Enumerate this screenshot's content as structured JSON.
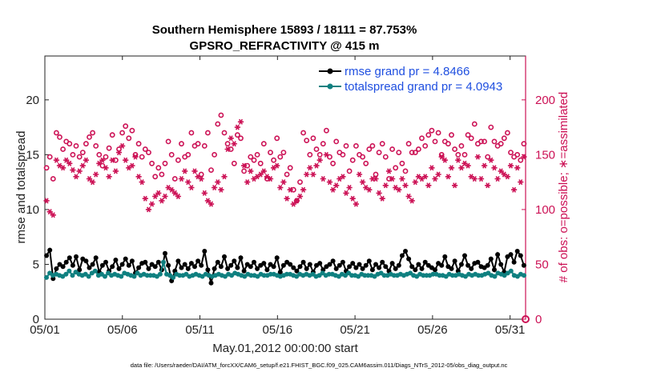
{
  "chart_data": {
    "type": "line",
    "title": "Southern Hemisphere 15893 / 18111 = 87.753%",
    "subtitle": "GPSRO_REFRACTIVITY @ 415 m",
    "xlabel": "May.01,2012 00:00:00 start",
    "ylabel": "rmse and totalspread",
    "ylabel_right": "# of obs: o=possible; ∗=assimilated",
    "footer": "data file: /Users/raeder/DAI/ATM_forcXX/CAM6_setup/f.e21.FHIST_BGC.f09_025.CAM6assim.011/Diags_NTrS_2012-05/obs_diag_output.nc",
    "xlim": [
      0,
      31
    ],
    "ylim": [
      0,
      24
    ],
    "ylim_right": [
      0,
      240
    ],
    "x_ticks": [
      0,
      5,
      10,
      15,
      20,
      25,
      30
    ],
    "x_tick_labels": [
      "05/01",
      "05/06",
      "05/11",
      "05/16",
      "05/21",
      "05/26",
      "05/31"
    ],
    "y_ticks": [
      0,
      5,
      10,
      15,
      20
    ],
    "y_tick_labels": [
      "0",
      "5",
      "10",
      "15",
      "20"
    ],
    "y_ticks_right": [
      0,
      50,
      100,
      150,
      200
    ],
    "y_tick_labels_right": [
      "0",
      "50",
      "100",
      "150",
      "200"
    ],
    "legend": [
      "rmse grand pr = 4.8466",
      "totalspread grand pr = 4.0943"
    ],
    "legend_location": "top-right",
    "colors": {
      "rmse": "#000000",
      "spread": "#0f8080",
      "obs": "#cc1155",
      "legend_text": "#1f4fe0"
    },
    "series": [
      {
        "name": "rmse",
        "axis": "left",
        "values": [
          5.8,
          6.3,
          3.7,
          4.6,
          5.0,
          4.8,
          5.2,
          5.6,
          4.9,
          5.7,
          4.5,
          5.5,
          5.3,
          4.7,
          5.0,
          5.6,
          4.3,
          4.9,
          5.2,
          4.4,
          4.8,
          5.4,
          4.6,
          5.0,
          5.5,
          4.9,
          5.3,
          4.2,
          4.7,
          5.1,
          5.2,
          4.6,
          5.0,
          4.8,
          5.2,
          4.5,
          6.0,
          4.9,
          3.5,
          4.4,
          5.3,
          4.7,
          5.0,
          4.6,
          5.1,
          4.8,
          5.3,
          4.9,
          6.2,
          4.5,
          3.3,
          4.6,
          5.2,
          4.8,
          5.7,
          4.6,
          4.9,
          5.3,
          4.7,
          5.6,
          4.4,
          5.0,
          4.8,
          5.2,
          4.6,
          4.9,
          5.1,
          4.5,
          5.0,
          4.8,
          5.6,
          4.3,
          4.9,
          5.2,
          5.0,
          4.7,
          4.4,
          4.8,
          5.2,
          4.6,
          5.0,
          4.3,
          4.9,
          5.1,
          4.5,
          4.8,
          5.0,
          5.3,
          4.6,
          4.9,
          5.2,
          4.4,
          4.8,
          5.1,
          4.7,
          5.0,
          4.6,
          4.9,
          5.3,
          4.5,
          5.0,
          4.7,
          5.2,
          4.8,
          4.4,
          5.1,
          4.6,
          4.9,
          5.8,
          6.2,
          5.5,
          4.8,
          4.5,
          5.0,
          4.6,
          5.2,
          4.9,
          4.7,
          4.5,
          5.1,
          4.9,
          5.7,
          4.8,
          4.6,
          5.3,
          4.4,
          5.0,
          5.8,
          4.9,
          4.6,
          5.1,
          5.2,
          4.8,
          4.7,
          4.9,
          5.5,
          4.5,
          5.9,
          5.0,
          4.3,
          5.7,
          5.9,
          5.2,
          6.2,
          5.8,
          4.9
        ]
      },
      {
        "name": "totalspread",
        "axis": "left",
        "values": [
          3.8,
          4.2,
          4.0,
          4.1,
          4.0,
          3.9,
          4.1,
          4.4,
          4.0,
          4.3,
          4.1,
          4.0,
          4.1,
          3.9,
          4.2,
          4.4,
          4.0,
          4.1,
          3.9,
          4.2,
          4.0,
          4.1,
          4.0,
          3.9,
          4.2,
          4.1,
          4.0,
          3.9,
          4.2,
          4.0,
          4.1,
          4.0,
          4.0,
          4.0,
          3.9,
          4.1,
          5.2,
          4.1,
          4.0,
          3.8,
          4.1,
          4.0,
          4.0,
          4.1,
          3.9,
          4.0,
          4.1,
          4.0,
          3.9,
          4.1,
          4.0,
          3.9,
          4.0,
          4.1,
          4.0,
          3.9,
          4.1,
          4.0,
          4.2,
          4.1,
          4.0,
          3.9,
          4.1,
          4.0,
          4.0,
          3.9,
          4.1,
          4.0,
          4.0,
          4.1,
          4.1,
          4.0,
          3.9,
          4.0,
          4.1,
          4.1,
          4.0,
          3.9,
          4.1,
          4.0,
          4.1,
          4.0,
          4.1,
          3.9,
          4.0,
          4.2,
          4.0,
          4.1,
          4.1,
          4.0,
          3.9,
          4.1,
          4.0,
          4.2,
          4.0,
          4.0,
          3.9,
          4.1,
          4.0,
          4.0,
          4.0,
          3.9,
          4.1,
          4.2,
          4.0,
          4.0,
          4.1,
          4.0,
          4.0,
          4.1,
          4.0,
          4.1,
          4.2,
          4.0,
          3.9,
          4.1,
          4.0,
          4.0,
          4.0,
          4.1,
          4.1,
          4.0,
          4.0,
          3.9,
          4.1,
          4.0,
          4.0,
          4.1,
          4.0,
          3.9,
          4.1,
          4.0,
          4.1,
          4.0,
          4.0,
          4.1,
          4.2,
          4.0,
          3.9,
          4.2,
          4.1,
          4.0,
          4.2,
          4.4,
          4.0,
          3.9,
          4.1,
          4.0
        ]
      },
      {
        "name": "possible",
        "axis": "right",
        "marker": "circle",
        "values": [
          138,
          148,
          128,
          170,
          166,
          155,
          162,
          160,
          150,
          158,
          148,
          152,
          160,
          166,
          170,
          158,
          150,
          140,
          148,
          156,
          168,
          145,
          155,
          170,
          176,
          165,
          172,
          150,
          160,
          148,
          155,
          152,
          142,
          130,
          138,
          132,
          142,
          162,
          150,
          128,
          145,
          160,
          148,
          150,
          170,
          158,
          160,
          132,
          158,
          170,
          136,
          150,
          178,
          186,
          170,
          160,
          155,
          142,
          168,
          165,
          135,
          140,
          148,
          145,
          150,
          142,
          160,
          128,
          152,
          145,
          165,
          148,
          152,
          132,
          138,
          118,
          108,
          125,
          170,
          163,
          150,
          165,
          155,
          150,
          160,
          172,
          148,
          142,
          162,
          152,
          150,
          158,
          135,
          145,
          158,
          150,
          148,
          142,
          155,
          158,
          132,
          152,
          160,
          148,
          128,
          155,
          138,
          152,
          142,
          135,
          160,
          152,
          152,
          155,
          165,
          158,
          168,
          172,
          162,
          170,
          150,
          162,
          160,
          168,
          155,
          150,
          158,
          150,
          168,
          165,
          178,
          160,
          162,
          162,
          148,
          175,
          162,
          158,
          160,
          165,
          170,
          152,
          148,
          150,
          145,
          160
        ]
      },
      {
        "name": "assimilated",
        "axis": "right",
        "marker": "star",
        "values": [
          108,
          98,
          95,
          145,
          140,
          138,
          145,
          142,
          136,
          130,
          135,
          140,
          145,
          128,
          125,
          132,
          142,
          145,
          138,
          130,
          145,
          135,
          152,
          158,
          145,
          138,
          140,
          148,
          130,
          125,
          110,
          100,
          105,
          112,
          115,
          108,
          112,
          120,
          118,
          115,
          112,
          128,
          135,
          125,
          120,
          135,
          130,
          128,
          115,
          108,
          105,
          120,
          125,
          118,
          130,
          155,
          165,
          160,
          175,
          180,
          140,
          125,
          135,
          128,
          130,
          132,
          135,
          130,
          128,
          138,
          140,
          120,
          125,
          110,
          118,
          105,
          108,
          112,
          118,
          132,
          138,
          132,
          140,
          145,
          128,
          150,
          125,
          118,
          122,
          128,
          130,
          115,
          120,
          110,
          105,
          132,
          125,
          120,
          118,
          128,
          128,
          115,
          110,
          122,
          135,
          128,
          120,
          118,
          128,
          122,
          112,
          108,
          125,
          130,
          128,
          130,
          122,
          138,
          128,
          132,
          148,
          145,
          130,
          138,
          122,
          145,
          138,
          142,
          140,
          130,
          128,
          148,
          128,
          140,
          122,
          145,
          138,
          128,
          135,
          132,
          130,
          140,
          118,
          138,
          125,
          148
        ]
      }
    ]
  }
}
